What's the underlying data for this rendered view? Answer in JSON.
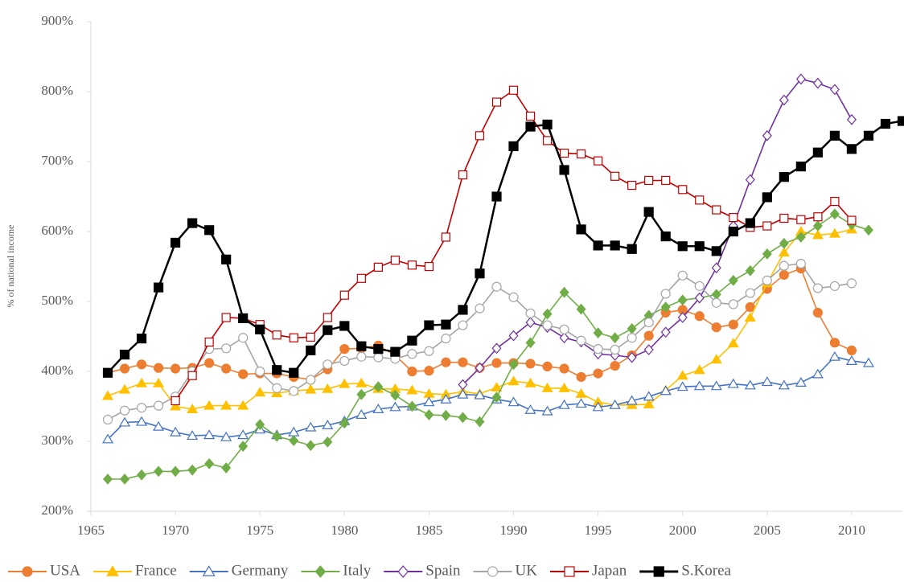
{
  "chart_data": {
    "type": "line",
    "y_label": "% of national income",
    "x": [
      1966,
      1967,
      1968,
      1969,
      1970,
      1971,
      1972,
      1973,
      1974,
      1975,
      1976,
      1977,
      1978,
      1979,
      1980,
      1981,
      1982,
      1983,
      1984,
      1985,
      1986,
      1987,
      1988,
      1989,
      1990,
      1991,
      1992,
      1993,
      1994,
      1995,
      1996,
      1997,
      1998,
      1999,
      2000,
      2001,
      2002,
      2003,
      2004,
      2005,
      2006,
      2007,
      2008,
      2009,
      2010,
      2011,
      2012,
      2013
    ],
    "xlim": [
      1965,
      2013
    ],
    "xticks": [
      1965,
      1970,
      1975,
      1980,
      1985,
      1990,
      1995,
      2000,
      2005,
      2010
    ],
    "ylim": [
      200,
      900
    ],
    "yticks": [
      {
        "value": 200,
        "label": "200%"
      },
      {
        "value": 300,
        "label": "300%"
      },
      {
        "value": 400,
        "label": "400%"
      },
      {
        "value": 500,
        "label": "500%"
      },
      {
        "value": 600,
        "label": "600%"
      },
      {
        "value": 700,
        "label": "700%"
      },
      {
        "value": 800,
        "label": "800%"
      },
      {
        "value": 900,
        "label": "900%"
      }
    ],
    "grid": false,
    "legend": "bottom",
    "series": [
      {
        "name": "USA",
        "color": "#ed7d31",
        "marker": "circle",
        "filled": true,
        "values": [
          398,
          404,
          410,
          405,
          404,
          405,
          412,
          404,
          396,
          397,
          397,
          392,
          388,
          403,
          432,
          433,
          437,
          423,
          400,
          401,
          413,
          413,
          405,
          412,
          412,
          411,
          407,
          404,
          392,
          397,
          408,
          423,
          451,
          484,
          488,
          479,
          463,
          467,
          492,
          518,
          538,
          547,
          484,
          441,
          430,
          null,
          null,
          null
        ]
      },
      {
        "name": "France",
        "color": "#ffc000",
        "marker": "triangle",
        "filled": true,
        "values": [
          365,
          374,
          383,
          383,
          350,
          346,
          351,
          351,
          351,
          370,
          369,
          372,
          374,
          375,
          382,
          383,
          375,
          375,
          373,
          368,
          367,
          371,
          368,
          377,
          386,
          383,
          376,
          376,
          368,
          356,
          352,
          352,
          353,
          373,
          394,
          402,
          417,
          440,
          477,
          526,
          570,
          600,
          595,
          597,
          603,
          null,
          null,
          null
        ]
      },
      {
        "name": "Germany",
        "color": "#4472c4",
        "marker": "triangle",
        "filled": false,
        "values": [
          303,
          327,
          328,
          321,
          313,
          308,
          309,
          306,
          309,
          317,
          309,
          313,
          320,
          323,
          329,
          338,
          346,
          349,
          350,
          356,
          360,
          367,
          366,
          360,
          356,
          345,
          343,
          352,
          354,
          349,
          352,
          358,
          364,
          372,
          378,
          379,
          379,
          382,
          380,
          385,
          380,
          384,
          396,
          421,
          415,
          412,
          null,
          null
        ]
      },
      {
        "name": "Italy",
        "color": "#70ad47",
        "marker": "diamond",
        "filled": true,
        "values": [
          246,
          246,
          252,
          257,
          257,
          259,
          268,
          262,
          293,
          324,
          307,
          301,
          294,
          299,
          326,
          367,
          378,
          366,
          350,
          338,
          337,
          334,
          328,
          363,
          410,
          441,
          482,
          513,
          489,
          455,
          448,
          461,
          480,
          492,
          502,
          505,
          510,
          530,
          544,
          568,
          583,
          592,
          608,
          625,
          610,
          602,
          null,
          null
        ]
      },
      {
        "name": "Spain",
        "color": "#7030a0",
        "marker": "diamond",
        "filled": false,
        "values": [
          null,
          null,
          null,
          null,
          null,
          null,
          null,
          null,
          null,
          null,
          null,
          null,
          null,
          null,
          null,
          null,
          null,
          null,
          null,
          null,
          null,
          381,
          405,
          433,
          451,
          470,
          463,
          448,
          442,
          425,
          423,
          420,
          431,
          456,
          477,
          505,
          548,
          608,
          674,
          737,
          788,
          818,
          812,
          803,
          760,
          null,
          null,
          null
        ]
      },
      {
        "name": "UK",
        "color": "#a5a5a5",
        "marker": "circle",
        "filled": false,
        "values": [
          331,
          344,
          348,
          351,
          364,
          400,
          432,
          433,
          448,
          400,
          376,
          372,
          388,
          410,
          415,
          421,
          420,
          418,
          425,
          429,
          447,
          466,
          490,
          521,
          506,
          483,
          466,
          460,
          444,
          432,
          431,
          448,
          470,
          511,
          537,
          522,
          498,
          496,
          512,
          530,
          551,
          554,
          519,
          522,
          526,
          null,
          null,
          null
        ]
      },
      {
        "name": "Japan",
        "color": "#c00000",
        "marker": "square",
        "filled": false,
        "values": [
          null,
          null,
          null,
          null,
          358,
          394,
          442,
          477,
          476,
          467,
          452,
          448,
          449,
          477,
          509,
          533,
          549,
          559,
          552,
          550,
          592,
          681,
          737,
          785,
          802,
          765,
          730,
          712,
          711,
          701,
          679,
          666,
          673,
          673,
          660,
          645,
          631,
          620,
          606,
          608,
          619,
          617,
          621,
          643,
          616,
          null,
          null,
          null
        ]
      },
      {
        "name": "S.Korea",
        "color": "#000000",
        "marker": "square",
        "filled": true,
        "values": [
          398,
          424,
          447,
          520,
          584,
          612,
          602,
          560,
          476,
          460,
          402,
          398,
          430,
          459,
          465,
          436,
          432,
          428,
          444,
          466,
          467,
          488,
          540,
          650,
          722,
          750,
          753,
          688,
          603,
          580,
          580,
          575,
          628,
          593,
          579,
          579,
          572,
          600,
          612,
          649,
          678,
          693,
          713,
          737,
          718,
          737,
          754,
          758
        ]
      }
    ]
  }
}
